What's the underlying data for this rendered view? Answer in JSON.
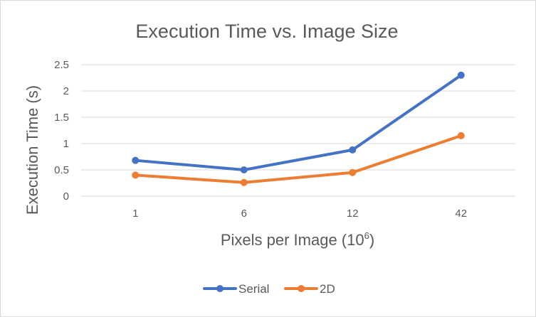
{
  "chart_data": {
    "type": "line",
    "title": "Execution Time vs. Image Size",
    "xlabel": "Pixels per Image (10",
    "xlabel_sup": "6",
    "xlabel_close": ")",
    "ylabel": "Execution Time (s)",
    "categories": [
      "1",
      "6",
      "12",
      "42"
    ],
    "ylim": [
      0,
      2.5
    ],
    "yticks": [
      "0",
      "0.5",
      "1",
      "1.5",
      "2",
      "2.5"
    ],
    "grid": true,
    "legend": "bottom",
    "series": [
      {
        "name": "Serial",
        "color": "#4472c4",
        "values": [
          0.68,
          0.5,
          0.88,
          2.3
        ]
      },
      {
        "name": "2D",
        "color": "#ed7d31",
        "values": [
          0.4,
          0.26,
          0.45,
          1.15
        ]
      }
    ]
  }
}
